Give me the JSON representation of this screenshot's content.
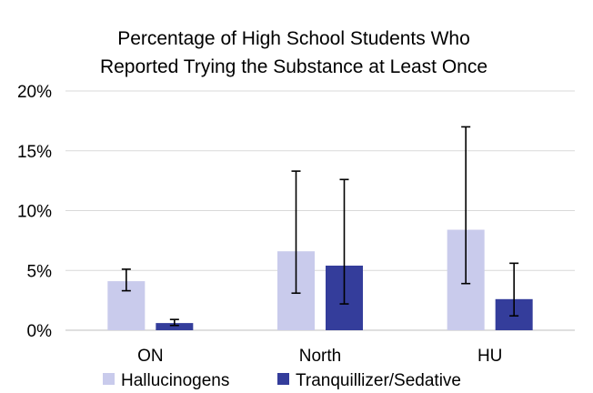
{
  "chart_data": {
    "type": "bar",
    "title_lines": [
      "Percentage of High School Students Who",
      "Reported Trying the Substance at Least Once"
    ],
    "categories": [
      "ON",
      "North",
      "HU"
    ],
    "series": [
      {
        "name": "Hallucinogens",
        "color": "#c9cbec",
        "values": [
          4.1,
          6.6,
          8.4
        ],
        "error_low": [
          3.3,
          3.1,
          3.9
        ],
        "error_high": [
          5.1,
          13.3,
          17.0
        ]
      },
      {
        "name": "Tranquillizer/Sedative",
        "color": "#343d9b",
        "values": [
          0.6,
          5.4,
          2.6
        ],
        "error_low": [
          0.4,
          2.2,
          1.2
        ],
        "error_high": [
          0.9,
          12.6,
          5.6
        ]
      }
    ],
    "y_ticks": [
      "0%",
      "5%",
      "10%",
      "15%",
      "20%"
    ],
    "ylim": [
      0,
      20
    ],
    "grid": true,
    "legend_position": "bottom"
  }
}
